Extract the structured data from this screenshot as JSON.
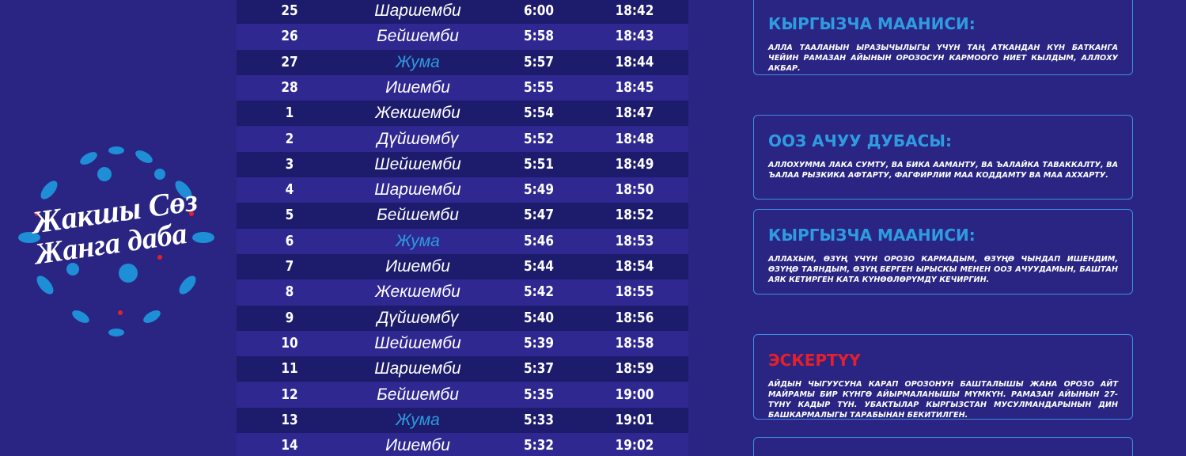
{
  "logo": {
    "line1": "Жакшы Сөз",
    "line2": "Жанга даба"
  },
  "table": {
    "rows": [
      {
        "day": "25",
        "weekday": "Шаршемби",
        "sahar": "6:00",
        "iftar": "18:42"
      },
      {
        "day": "26",
        "weekday": "Бейшемби",
        "sahar": "5:58",
        "iftar": "18:43"
      },
      {
        "day": "27",
        "weekday": "Жума",
        "sahar": "5:57",
        "iftar": "18:44",
        "weekday_color": "#2f9be0"
      },
      {
        "day": "28",
        "weekday": "Ишемби",
        "sahar": "5:55",
        "iftar": "18:45"
      },
      {
        "day": "1",
        "weekday": "Жекшемби",
        "sahar": "5:54",
        "iftar": "18:47"
      },
      {
        "day": "2",
        "weekday": "Дүйшөмбү",
        "sahar": "5:52",
        "iftar": "18:48"
      },
      {
        "day": "3",
        "weekday": "Шейшемби",
        "sahar": "5:51",
        "iftar": "18:49"
      },
      {
        "day": "4",
        "weekday": "Шаршемби",
        "sahar": "5:49",
        "iftar": "18:50"
      },
      {
        "day": "5",
        "weekday": "Бейшемби",
        "sahar": "5:47",
        "iftar": "18:52"
      },
      {
        "day": "6",
        "weekday": "Жума",
        "sahar": "5:46",
        "iftar": "18:53",
        "weekday_color": "#2f9be0"
      },
      {
        "day": "7",
        "weekday": "Ишемби",
        "sahar": "5:44",
        "iftar": "18:54"
      },
      {
        "day": "8",
        "weekday": "Жекшемби",
        "sahar": "5:42",
        "iftar": "18:55"
      },
      {
        "day": "9",
        "weekday": "Дүйшөмбү",
        "sahar": "5:40",
        "iftar": "18:56"
      },
      {
        "day": "10",
        "weekday": "Шейшемби",
        "sahar": "5:39",
        "iftar": "18:58"
      },
      {
        "day": "11",
        "weekday": "Шаршемби",
        "sahar": "5:37",
        "iftar": "18:59"
      },
      {
        "day": "12",
        "weekday": "Бейшемби",
        "sahar": "5:35",
        "iftar": "19:00"
      },
      {
        "day": "13",
        "weekday": "Жума",
        "sahar": "5:33",
        "iftar": "19:01",
        "weekday_color": "#2f9be0"
      },
      {
        "day": "14",
        "weekday": "Ишемби",
        "sahar": "5:32",
        "iftar": "19:02"
      }
    ]
  },
  "boxes": [
    {
      "title": "КЫРГЫЗЧА МААНИСИ:",
      "text": "АЛЛА ТААЛАНЫН ЫРАЗЫЧЫЛЫГЫ ҮЧҮН ТАҢ АТКАНДАН КҮН БАТКАНГА ЧЕЙИН РАМАЗАН АЙЫНЫН ОРОЗОСУН КАРМООГО НИЕТ КЫЛДЫМ, АЛЛОХУ АКБАР."
    },
    {
      "title": "ООЗ  АЧУУ ДУБАСЫ:",
      "text": "АЛЛОХУММА ЛАКА СУМТУ, ВА БИКА ААМАНТУ, ВА ЪАЛАЙКА ТАВАККАЛТУ, ВА ЪАЛАА РЫЗКИКА АФТАРТУ, ФАГФИРЛИИ МАА КОДДАМТУ ВА МАА АХХАРТУ."
    },
    {
      "title": "КЫРГЫЗЧА МААНИСИ:",
      "text": "АЛЛАХЫМ, ӨЗҮҢ ҮЧҮН ОРОЗО КАРМАДЫМ, ӨЗҮҢӨ ЧЫНДАП ИШЕНДИМ, ӨЗҮҢӨ ТАЯНДЫМ, ӨЗҮҢ БЕРГЕН ЫРЫСКЫ МЕНЕН ООЗ АЧУУДАМЫН, БАШТАН АЯК КЕТИРГЕН КАТА КҮНӨӨЛӨРҮМДҮ КЕЧИРГИН."
    },
    {
      "title": "ЭСКЕРТҮҮ",
      "title_color": "#e3202b",
      "text": "АЙДЫН ЧЫГУУСУНА КАРАП ОРОЗОНУН БАШТАЛЫШЫ ЖАНА ОРОЗО АЙТ МАЙРАМЫ БИР КҮНГӨ АЙЫРМАЛАНЫШЫ МҮМКҮН. РАМАЗАН АЙЫНЫН 27-ТҮНҮ КАДЫР ТҮН. УБАКТЫЛАР КЫРГЫЗСТАН МУСУЛМАНДАРЫНЫН ДИН БАШКАРМАЛЫГЫ ТАРАБЫНАН БЕКИТИЛГЕН."
    }
  ]
}
